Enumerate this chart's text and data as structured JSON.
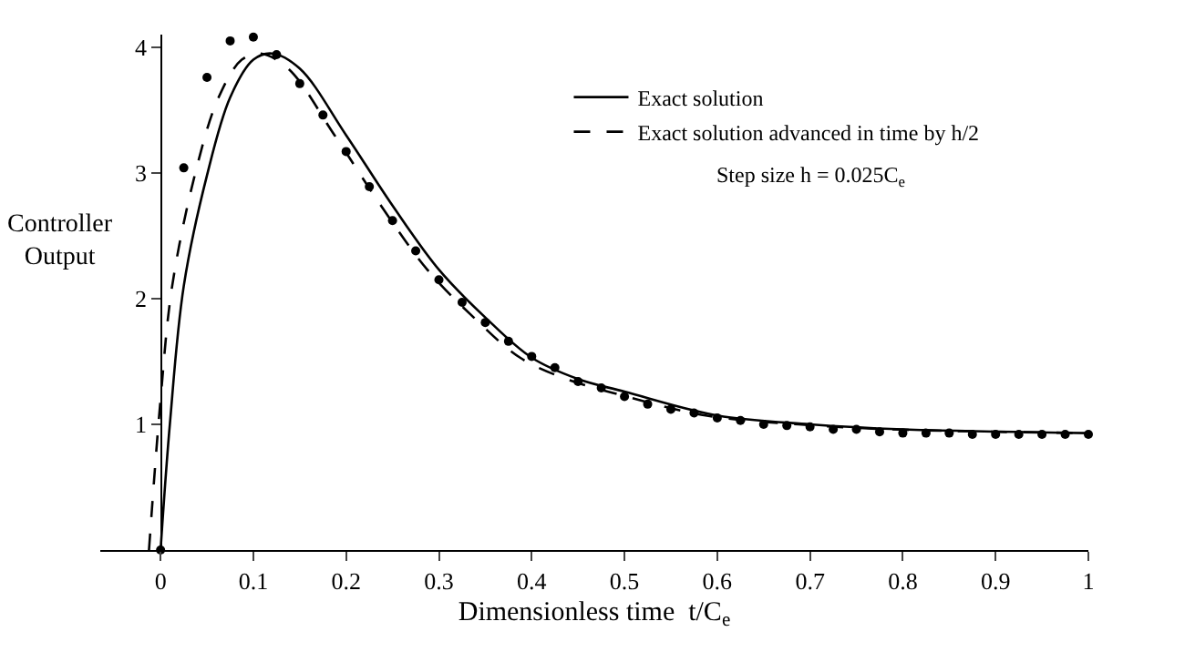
{
  "chart_data": {
    "type": "line",
    "xlabel": "Dimensionless time  t/C$_{e}$",
    "ylabel": "Controller Output",
    "xlim": [
      -0.065,
      1
    ],
    "ylim": [
      0,
      4.1
    ],
    "xticks": [
      0,
      0.1,
      0.2,
      0.3,
      0.4,
      0.5,
      0.6,
      0.7,
      0.8,
      0.9,
      1
    ],
    "yticks": [
      1,
      2,
      3,
      4
    ],
    "legend": "top right",
    "annotations": [
      "Step size h = 0.025C$_{e}$"
    ],
    "series": [
      {
        "name": "Exact solution",
        "color": "#000000",
        "line_style": "solid",
        "marker": "none",
        "x": [
          0,
          0.01,
          0.025,
          0.05,
          0.075,
          0.1,
          0.12,
          0.15,
          0.2,
          0.25,
          0.3,
          0.35,
          0.4,
          0.45,
          0.5,
          0.6,
          0.7,
          0.8,
          1
        ],
        "values": [
          0,
          1.0,
          2.1,
          2.98,
          3.6,
          3.9,
          3.95,
          3.83,
          3.3,
          2.74,
          2.23,
          1.85,
          1.53,
          1.36,
          1.26,
          1.07,
          1.0,
          0.96,
          0.93
        ]
      },
      {
        "name": "Exact solution advanced in time by h/2",
        "color": "#000000",
        "line_style": "dashed",
        "marker": "none",
        "x": [
          -0.0125,
          0,
          0.0125,
          0.0375,
          0.0625,
          0.0875,
          0.1075,
          0.1375,
          0.1875,
          0.2375,
          0.2875,
          0.3375,
          0.3875,
          0.4375,
          0.4875,
          0.5875,
          0.6875,
          0.7875,
          1
        ],
        "values": [
          0,
          1.2,
          2.1,
          3.0,
          3.6,
          3.9,
          3.95,
          3.83,
          3.3,
          2.74,
          2.23,
          1.85,
          1.53,
          1.36,
          1.25,
          1.07,
          1.0,
          0.96,
          0.93
        ]
      },
      {
        "type": "scatter",
        "color": "#000000",
        "marker": "circle",
        "x": [
          0,
          0.025,
          0.05,
          0.075,
          0.1,
          0.125,
          0.15,
          0.175,
          0.2,
          0.225,
          0.25,
          0.275,
          0.3,
          0.325,
          0.35,
          0.375,
          0.4,
          0.425,
          0.45,
          0.475,
          0.5,
          0.525,
          0.55,
          0.575,
          0.6,
          0.625,
          0.65,
          0.675,
          0.7,
          0.725,
          0.75,
          0.775,
          0.8,
          0.825,
          0.85,
          0.875,
          0.9,
          0.925,
          0.95,
          0.975,
          1
        ],
        "values": [
          0,
          3.04,
          3.76,
          4.05,
          4.08,
          3.94,
          3.71,
          3.46,
          3.17,
          2.89,
          2.62,
          2.38,
          2.15,
          1.97,
          1.81,
          1.66,
          1.54,
          1.45,
          1.34,
          1.29,
          1.22,
          1.16,
          1.12,
          1.09,
          1.05,
          1.03,
          1.0,
          0.99,
          0.98,
          0.96,
          0.96,
          0.94,
          0.93,
          0.93,
          0.93,
          0.92,
          0.92,
          0.92,
          0.92,
          0.92,
          0.92
        ]
      }
    ]
  }
}
